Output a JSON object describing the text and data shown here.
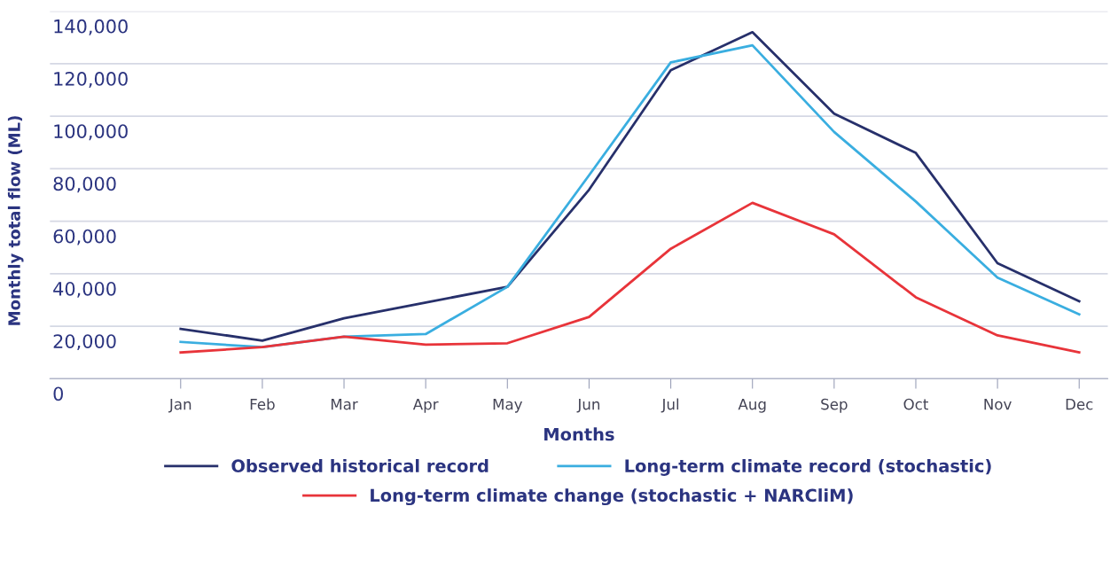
{
  "chart_data": {
    "type": "line",
    "xlabel": "Months",
    "ylabel": "Monthly total flow (ML)",
    "categories": [
      "Jan",
      "Feb",
      "Mar",
      "Apr",
      "May",
      "Jun",
      "Jul",
      "Aug",
      "Sep",
      "Oct",
      "Nov",
      "Dec"
    ],
    "series": [
      {
        "name": "Observed historical record",
        "color": "#27306b",
        "values": [
          19000,
          14500,
          23000,
          29000,
          35000,
          72000,
          117500,
          132000,
          101000,
          86000,
          44000,
          29500
        ]
      },
      {
        "name": "Long-term climate record (stochastic)",
        "color": "#3aaee0",
        "values": [
          14000,
          12000,
          16000,
          17000,
          35000,
          77500,
          120500,
          127000,
          94000,
          67500,
          38500,
          24500
        ]
      },
      {
        "name": "Long-term climate change (stochastic + NARCliM)",
        "color": "#e8343a",
        "values": [
          10000,
          12000,
          16000,
          13000,
          13500,
          23500,
          49500,
          67000,
          55000,
          31000,
          16500,
          10000
        ]
      }
    ],
    "ylim": [
      0,
      140000
    ],
    "yticks": [
      {
        "value": 0,
        "label": "0"
      },
      {
        "value": 20000,
        "label": "20,000"
      },
      {
        "value": 40000,
        "label": "40,000"
      },
      {
        "value": 60000,
        "label": "60,000"
      },
      {
        "value": 80000,
        "label": "80,000"
      },
      {
        "value": 100000,
        "label": "100,000"
      },
      {
        "value": 120000,
        "label": "120,000"
      },
      {
        "value": 140000,
        "label": "140,000"
      }
    ],
    "grid": "y",
    "legend": "bottom",
    "marker": "none",
    "line_style": "solid"
  }
}
